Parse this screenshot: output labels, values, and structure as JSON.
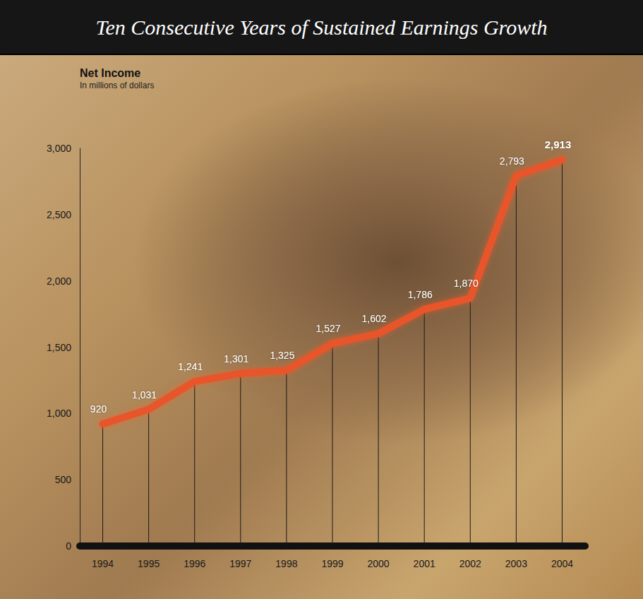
{
  "chart_data": {
    "type": "line",
    "title": "Ten Consecutive Years of Sustained Earnings Growth",
    "subtitle": "Net Income",
    "ylabel": "In millions of dollars",
    "categories": [
      "1994",
      "1995",
      "1996",
      "1997",
      "1998",
      "1999",
      "2000",
      "2001",
      "2002",
      "2003",
      "2004"
    ],
    "values": [
      920,
      1031,
      1241,
      1301,
      1325,
      1527,
      1602,
      1786,
      1870,
      2793,
      2913
    ],
    "value_labels": [
      "920",
      "1,031",
      "1,241",
      "1,301",
      "1,325",
      "1,527",
      "1,602",
      "1,786",
      "1,870",
      "2,793",
      "2,913"
    ],
    "color": "#e8542a",
    "ylim": [
      0,
      3000
    ],
    "yticks": [
      0,
      500,
      {
        "value": 1000,
        "label": "1,000"
      },
      {
        "value": 1500,
        "label": "1,500"
      },
      {
        "value": 2000,
        "label": "2,000"
      },
      {
        "value": 2500,
        "label": "2,500"
      },
      {
        "value": 3000,
        "label": "3,000"
      }
    ],
    "grid": false,
    "data_labels": true
  }
}
